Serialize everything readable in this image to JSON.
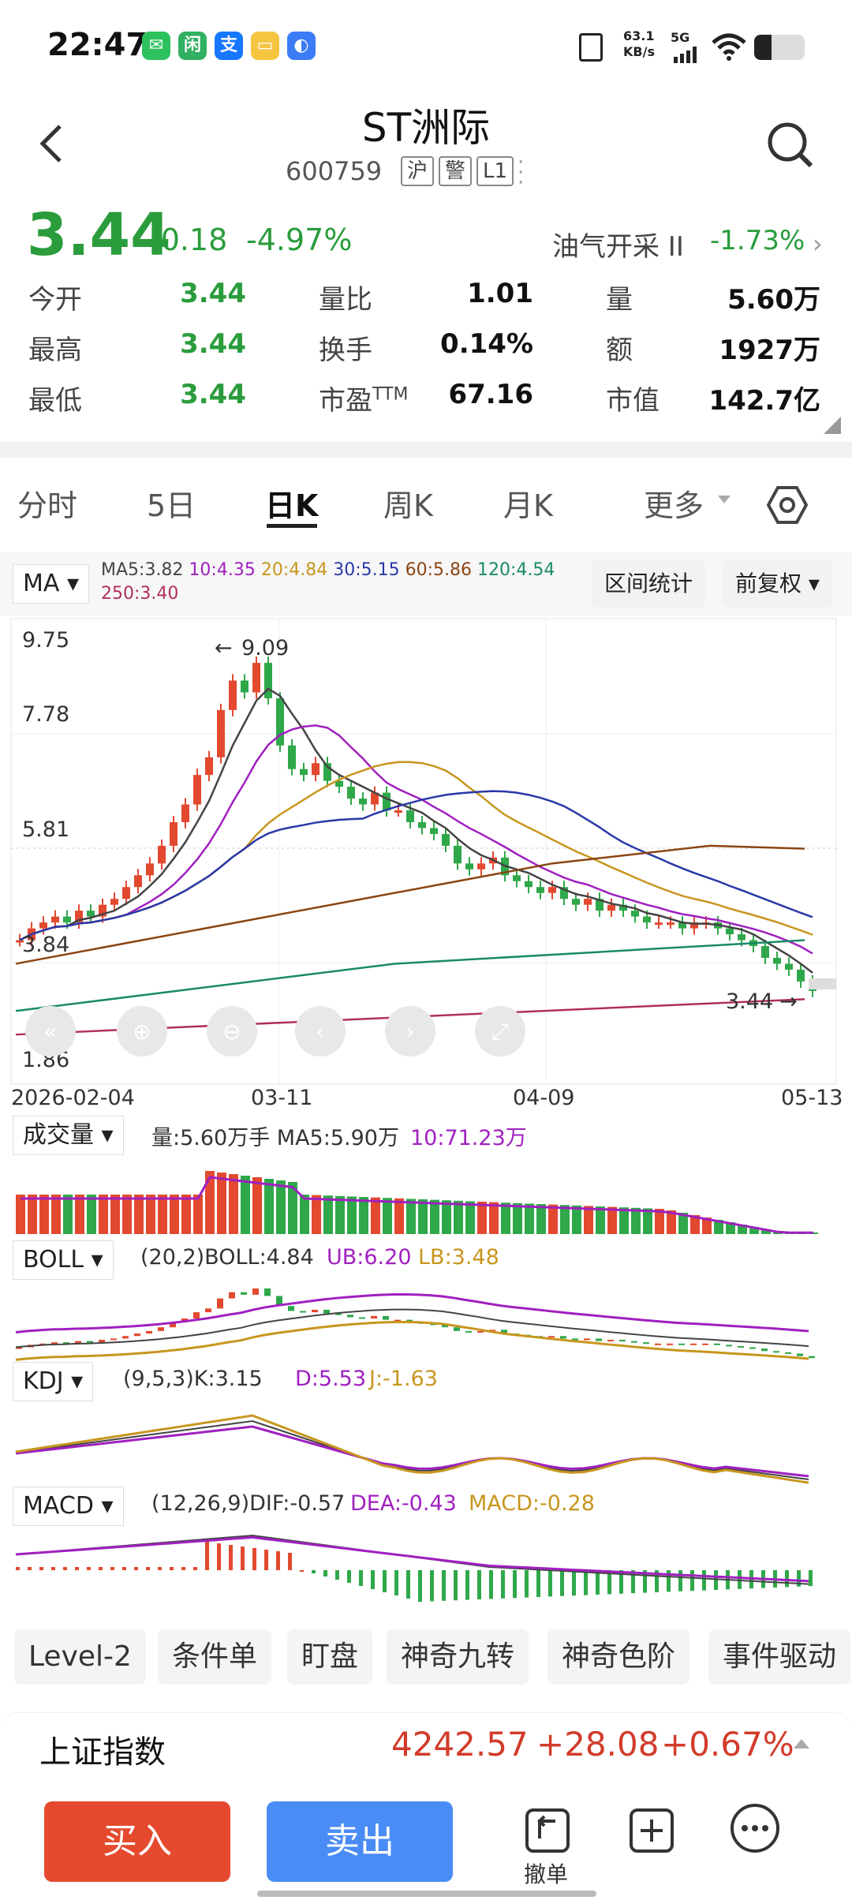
{
  "status": {
    "time": "22:47",
    "net_speed": "63.1",
    "net_unit": "KB/s",
    "signal": "5G"
  },
  "stock": {
    "name": "ST洲际",
    "code": "600759",
    "tags": [
      "沪",
      "警",
      "L1"
    ],
    "price": "3.44",
    "change": "-0.18",
    "change_pct": "-4.97%",
    "sector": "油气开采 II",
    "sector_pct": "-1.73%"
  },
  "quote": {
    "open_label": "今开",
    "open": "3.44",
    "high_label": "最高",
    "high": "3.44",
    "low_label": "最低",
    "low": "3.44",
    "vr_label": "量比",
    "vr": "1.01",
    "turnover_label": "换手",
    "turnover": "0.14%",
    "pe_label": "市盈TTM",
    "pe": "67.16",
    "vol_label": "量",
    "vol": "5.60万",
    "amt_label": "额",
    "amt": "1927万",
    "cap_label": "市值",
    "cap": "142.7亿"
  },
  "tabs": [
    "分时",
    "5日",
    "日K",
    "周K",
    "月K",
    "更多"
  ],
  "active_tab": "日K",
  "ma": {
    "label": "MA",
    "items": [
      {
        "text": "MA5:3.82",
        "color": "#444444"
      },
      {
        "text": "10:4.35",
        "color": "#a020c0"
      },
      {
        "text": "20:4.84",
        "color": "#c8961e"
      },
      {
        "text": "30:5.15",
        "color": "#2a38a8"
      },
      {
        "text": "60:5.86",
        "color": "#8b4513"
      },
      {
        "text": "120:4.54",
        "color": "#1a8a6a"
      }
    ],
    "ma250": {
      "text": "250:3.40",
      "color": "#b0305a"
    },
    "range_btn": "区间统计",
    "adjust_btn": "前复权"
  },
  "chart_data": {
    "type": "candlestick",
    "yticks": [
      "9.75",
      "7.78",
      "5.81",
      "3.84",
      "1.86"
    ],
    "xticks": [
      "2026-02-04",
      "03-11",
      "04-09",
      "05-13"
    ],
    "high_marker": "9.09",
    "last_marker": "3.44",
    "ylim": [
      1.86,
      9.75
    ]
  },
  "volume": {
    "label": "成交量",
    "text": "量:5.60万手 MA5:5.90万",
    "text2": "10:71.23万"
  },
  "boll": {
    "label": "BOLL",
    "text": "(20,2)BOLL:4.84",
    "ub": "UB:6.20",
    "lb": "LB:3.48"
  },
  "kdj": {
    "label": "KDJ",
    "text": "(9,5,3)K:3.15",
    "d": "D:5.53",
    "j": "J:-1.63"
  },
  "macd": {
    "label": "MACD",
    "text": "(12,26,9)DIF:-0.57",
    "dea": "DEA:-0.43",
    "macd": "MACD:-0.28"
  },
  "chips": [
    "Level-2",
    "条件单",
    "盯盘",
    "神奇九转",
    "神奇色阶",
    "事件驱动"
  ],
  "index": {
    "name": "上证指数",
    "value": "4242.57",
    "change": "+28.08",
    "pct": "+0.67%"
  },
  "actions": {
    "buy": "买入",
    "sell": "卖出",
    "cancel": "撤单"
  }
}
